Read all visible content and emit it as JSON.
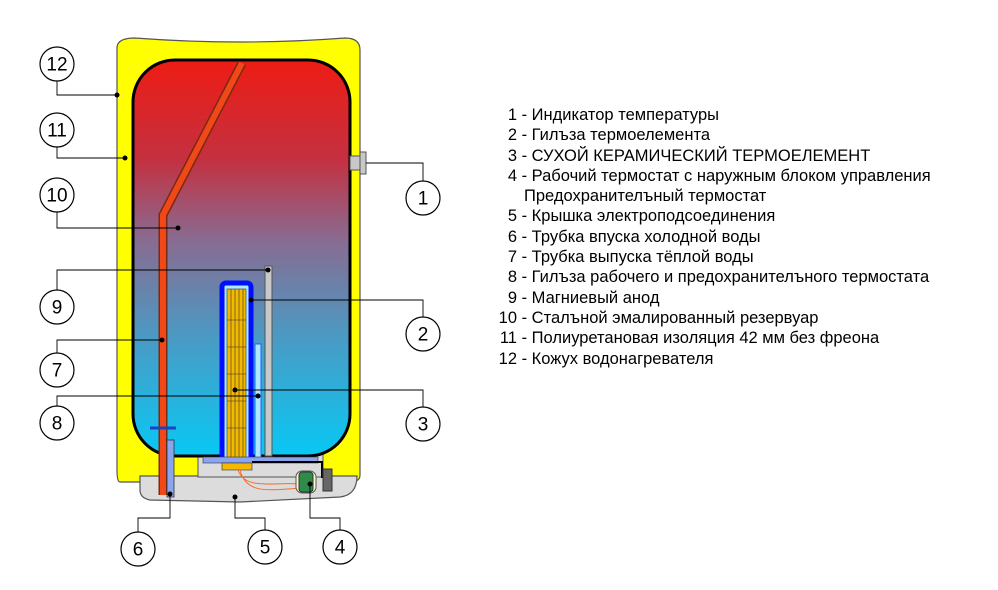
{
  "legend": [
    {
      "num": "1",
      "text": "Индикатор температуры"
    },
    {
      "num": "2",
      "text": "Гилъза термоелемента"
    },
    {
      "num": "3",
      "text": "СУХОЙ КЕРАМИЧЕСКИЙ ТЕРМОЕЛЕМЕНТ"
    },
    {
      "num": "4",
      "text": "Рабочий термостат с наружным блоком управления",
      "continuation": "Предохранителъный термостат"
    },
    {
      "num": "5",
      "text": "Крышка электроподсоединения"
    },
    {
      "num": "6",
      "text": "Трубка впуска холодной воды"
    },
    {
      "num": "7",
      "text": "Трубка выпуска тёплой воды"
    },
    {
      "num": "8",
      "text": "Гилъза рабочего и предохранителъного термостата"
    },
    {
      "num": "9",
      "text": "Магниевый анод"
    },
    {
      "num": "10",
      "text": "Сталъной эмалированный резервуар"
    },
    {
      "num": "11",
      "text": "Полиуретановая изоляция 42 мм без фреона"
    },
    {
      "num": "12",
      "text": "Кожух водонагревателя"
    }
  ],
  "callouts": [
    "1",
    "2",
    "3",
    "4",
    "5",
    "6",
    "7",
    "8",
    "9",
    "10",
    "11",
    "12"
  ],
  "colors": {
    "casing": "#ffff00",
    "hot": "#e81e1e",
    "cold": "#10c8f0",
    "element": "#f5b800",
    "sleeve": "#0010ff",
    "anode": "#c8c8c8",
    "cover": "#dcdcdc",
    "thermostat": "#2e8b4a"
  }
}
